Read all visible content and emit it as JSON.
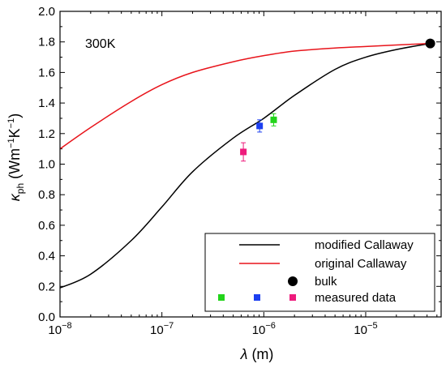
{
  "chart_data": {
    "type": "line",
    "annotation": "300K",
    "xlabel": {
      "symbol": "λ",
      "unit": " (m)"
    },
    "ylabel": {
      "symbol": "κ",
      "sub": "ph",
      "unit_a": " (Wm",
      "sup_a": "−1",
      "unit_b": "K",
      "sup_b": "−1",
      "unit_c": ")"
    },
    "xscale": "log",
    "xlim": [
      1e-08,
      5.5e-05
    ],
    "ylim": [
      0,
      2.0
    ],
    "x_ticks": [
      {
        "value": 1e-08,
        "base": "10",
        "exp": "−8"
      },
      {
        "value": 1e-07,
        "base": "10",
        "exp": "−7"
      },
      {
        "value": 1e-06,
        "base": "10",
        "exp": "−6"
      },
      {
        "value": 1e-05,
        "base": "10",
        "exp": "−5"
      }
    ],
    "y_ticks": [
      "0.0",
      "0.2",
      "0.4",
      "0.6",
      "0.8",
      "1.0",
      "1.2",
      "1.4",
      "1.6",
      "1.8",
      "2.0"
    ],
    "legend_position": "bottom-right",
    "series": [
      {
        "name": "modified Callaway",
        "color": "#000000",
        "x": [
          1e-08,
          2e-08,
          5e-08,
          1e-07,
          2e-07,
          5e-07,
          1e-06,
          2e-06,
          5e-06,
          1e-05,
          2e-05,
          4.3e-05
        ],
        "y": [
          0.19,
          0.28,
          0.5,
          0.72,
          0.95,
          1.17,
          1.3,
          1.45,
          1.62,
          1.7,
          1.75,
          1.79
        ]
      },
      {
        "name": "original Callaway",
        "color": "#e8141b",
        "x": [
          1e-08,
          2e-08,
          5e-08,
          1e-07,
          2e-07,
          5e-07,
          1e-06,
          2e-06,
          5e-06,
          1e-05,
          2e-05,
          4.3e-05
        ],
        "y": [
          1.1,
          1.24,
          1.41,
          1.52,
          1.6,
          1.67,
          1.71,
          1.74,
          1.76,
          1.77,
          1.78,
          1.79
        ]
      }
    ],
    "bulk": {
      "name": "bulk",
      "x": 4.3e-05,
      "y": 1.79,
      "color": "#000000"
    },
    "measured": {
      "name": "measured data",
      "points": [
        {
          "x": 6.3e-07,
          "y": 1.08,
          "err": 0.06,
          "color": "#ee1b7c"
        },
        {
          "x": 9.1e-07,
          "y": 1.25,
          "err": 0.04,
          "color": "#1c3ff0"
        },
        {
          "x": 1.25e-06,
          "y": 1.29,
          "err": 0.04,
          "color": "#22d41a"
        }
      ]
    }
  }
}
